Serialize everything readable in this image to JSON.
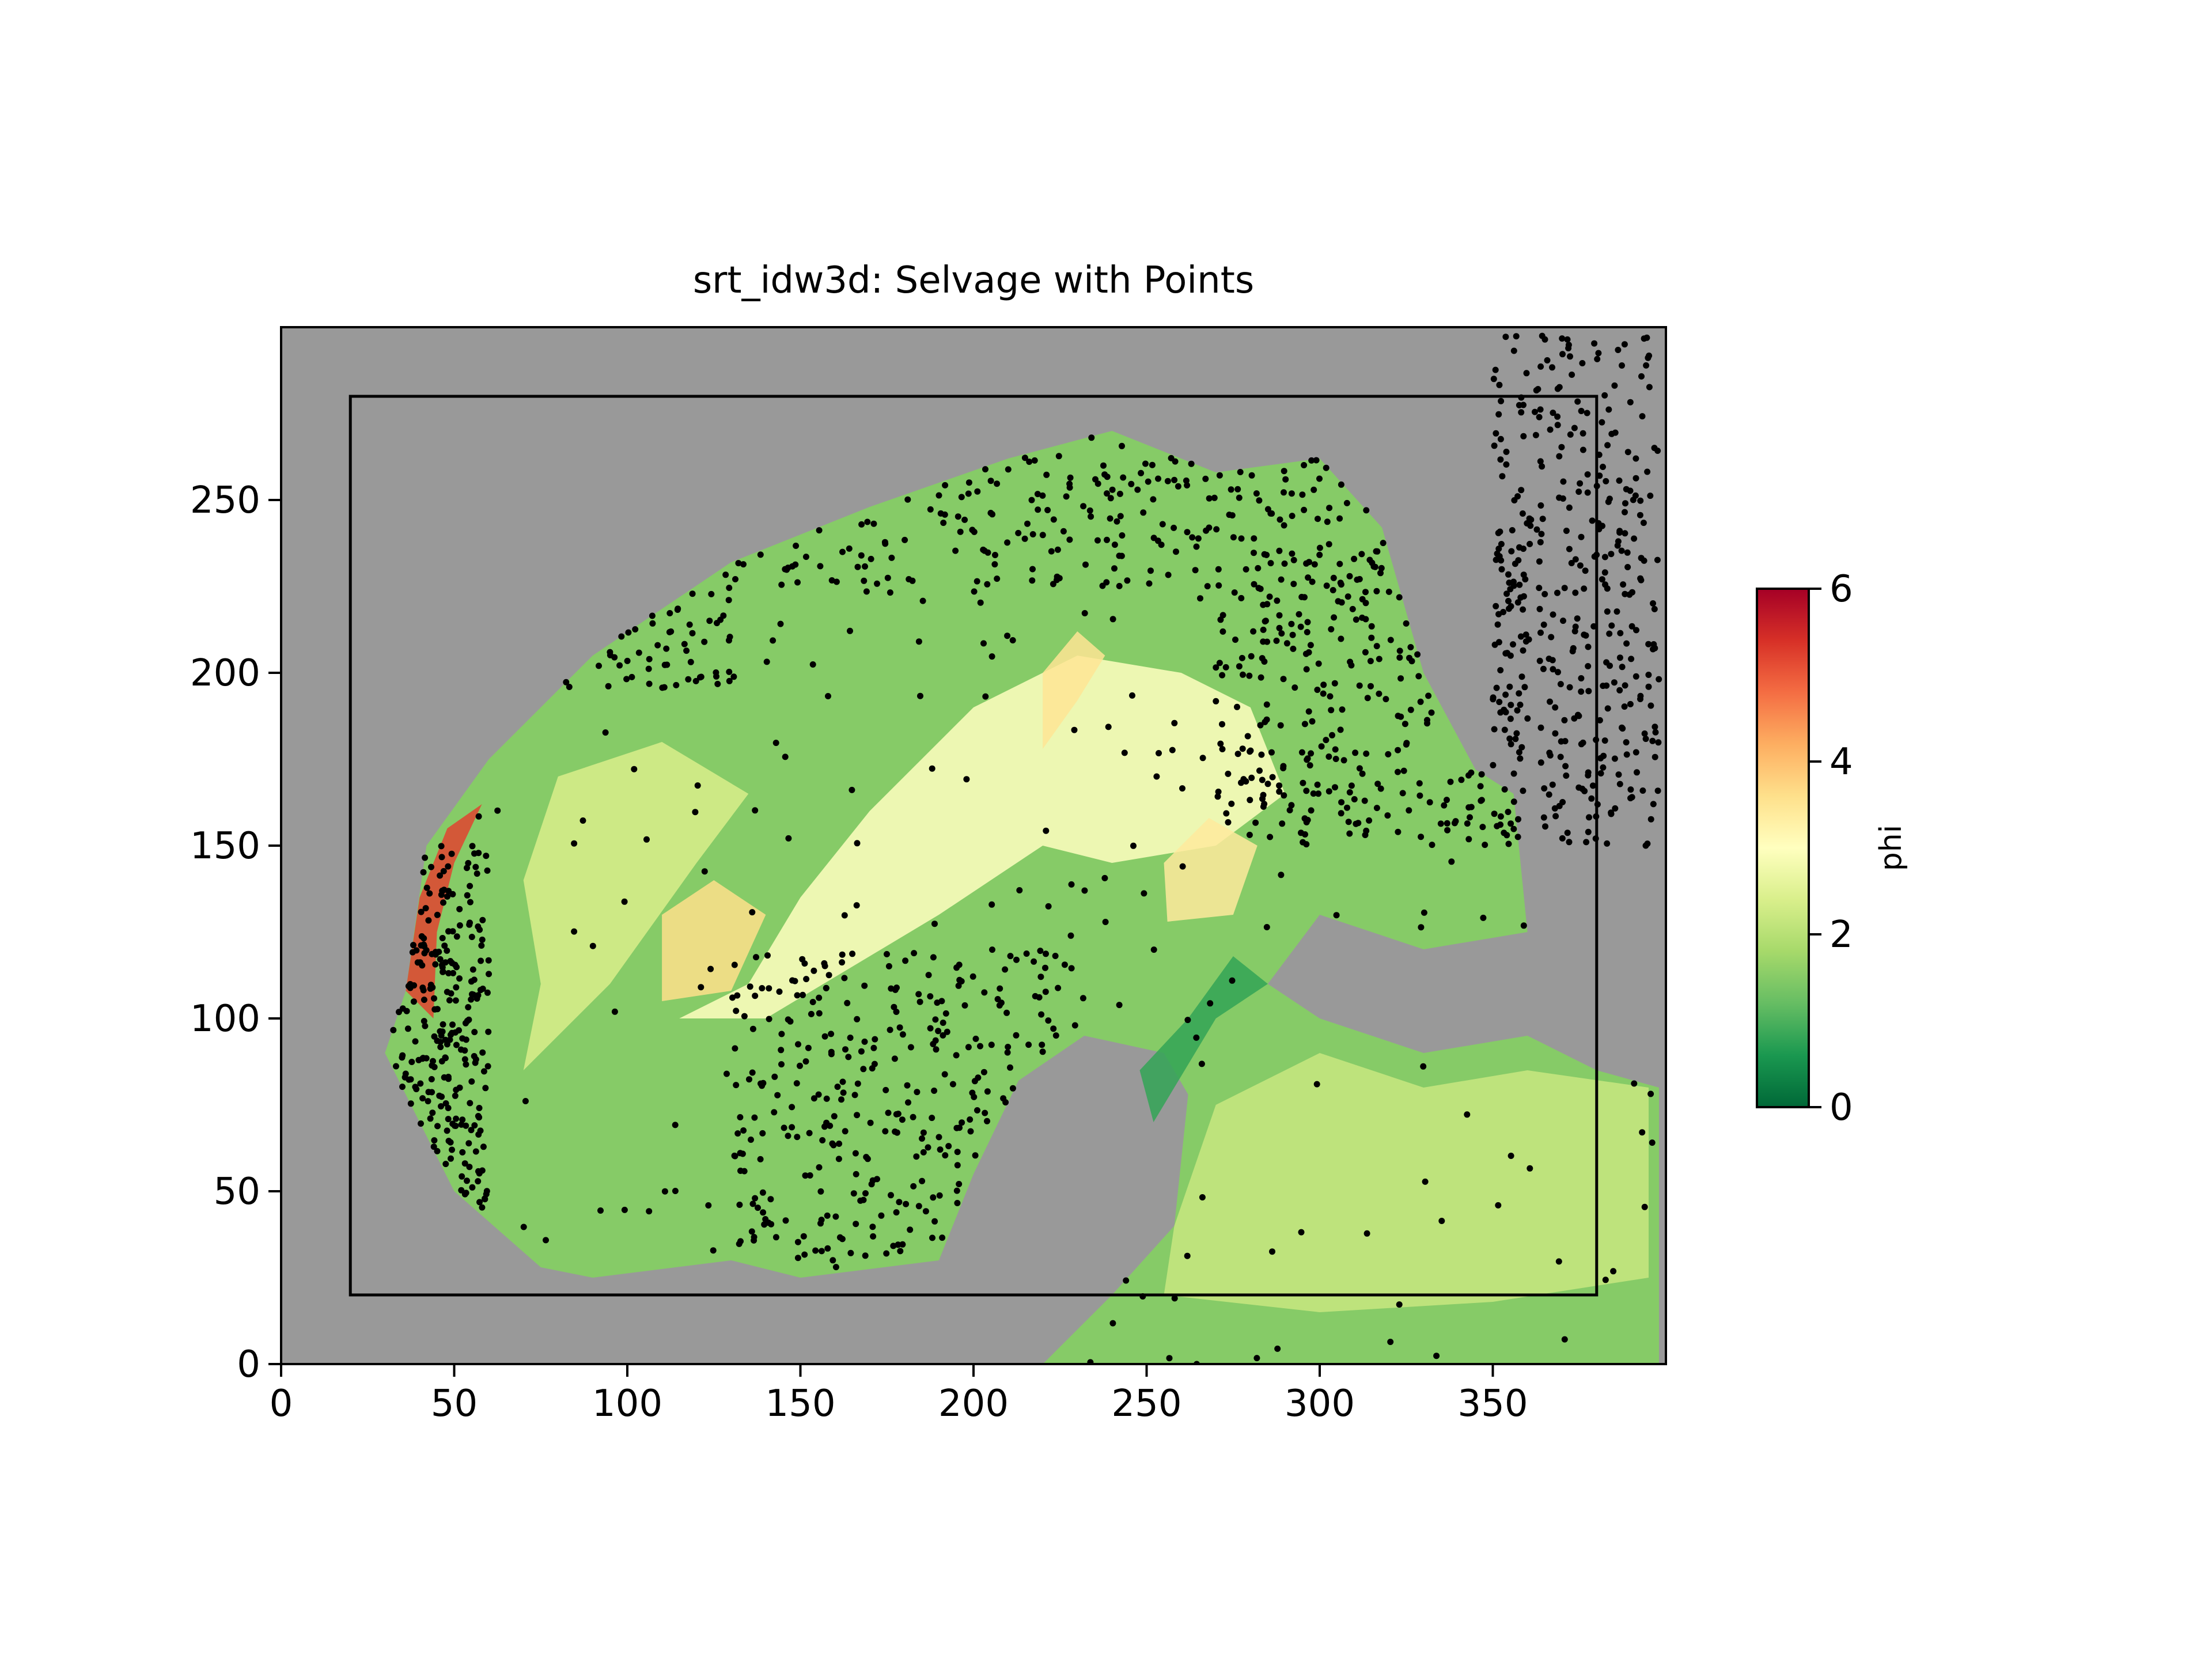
{
  "chart_data": {
    "type": "heatmap",
    "title": "srt_idw3d: Selvage with Points",
    "xlim": [
      0,
      400
    ],
    "ylim": [
      0,
      300
    ],
    "x_ticks": [
      0,
      50,
      100,
      150,
      200,
      250,
      300,
      350
    ],
    "y_ticks": [
      0,
      50,
      100,
      150,
      200,
      250
    ],
    "grid": false,
    "background_color": "#999999",
    "selvage_box": {
      "x0": 20,
      "y0": 20,
      "x1": 380,
      "y1": 280
    },
    "colorbar": {
      "label": "phi",
      "min": 0,
      "max": 6,
      "ticks": [
        0,
        2,
        4,
        6
      ],
      "colormap": "RdYlGn_r",
      "placement": "right"
    },
    "field_zones": [
      {
        "value": 1.5,
        "polygon": [
          [
            36,
            108
          ],
          [
            42,
            150
          ],
          [
            60,
            175
          ],
          [
            90,
            205
          ],
          [
            130,
            232
          ],
          [
            170,
            248
          ],
          [
            210,
            262
          ],
          [
            240,
            270
          ],
          [
            270,
            258
          ],
          [
            300,
            262
          ],
          [
            318,
            242
          ],
          [
            330,
            200
          ],
          [
            345,
            172
          ],
          [
            356,
            165
          ],
          [
            360,
            125
          ],
          [
            330,
            120
          ],
          [
            300,
            130
          ],
          [
            285,
            110
          ],
          [
            300,
            100
          ],
          [
            330,
            90
          ],
          [
            360,
            95
          ],
          [
            380,
            85
          ],
          [
            398,
            80
          ],
          [
            398,
            0
          ],
          [
            220,
            0
          ],
          [
            240,
            20
          ],
          [
            258,
            40
          ],
          [
            262,
            78
          ],
          [
            255,
            90
          ],
          [
            232,
            95
          ],
          [
            213,
            82
          ],
          [
            200,
            55
          ],
          [
            190,
            30
          ],
          [
            150,
            25
          ],
          [
            130,
            30
          ],
          [
            90,
            25
          ],
          [
            75,
            28
          ],
          [
            50,
            50
          ],
          [
            40,
            70
          ],
          [
            30,
            90
          ]
        ]
      },
      {
        "value": 3.0,
        "polygon": [
          [
            115,
            100
          ],
          [
            135,
            110
          ],
          [
            150,
            135
          ],
          [
            170,
            160
          ],
          [
            200,
            190
          ],
          [
            230,
            205
          ],
          [
            260,
            200
          ],
          [
            280,
            190
          ],
          [
            290,
            165
          ],
          [
            270,
            150
          ],
          [
            240,
            145
          ],
          [
            220,
            150
          ],
          [
            190,
            130
          ],
          [
            165,
            115
          ],
          [
            140,
            100
          ]
        ]
      },
      {
        "value": 2.4,
        "polygon": [
          [
            70,
            85
          ],
          [
            95,
            110
          ],
          [
            120,
            145
          ],
          [
            135,
            165
          ],
          [
            110,
            180
          ],
          [
            80,
            170
          ],
          [
            70,
            140
          ],
          [
            75,
            110
          ]
        ]
      },
      {
        "value": 3.6,
        "polygon": [
          [
            110,
            105
          ],
          [
            130,
            108
          ],
          [
            140,
            130
          ],
          [
            125,
            140
          ],
          [
            110,
            130
          ]
        ]
      },
      {
        "value": 3.5,
        "polygon": [
          [
            220,
            178
          ],
          [
            230,
            192
          ],
          [
            238,
            205
          ],
          [
            230,
            212
          ],
          [
            220,
            200
          ]
        ]
      },
      {
        "value": 3.4,
        "polygon": [
          [
            256,
            128
          ],
          [
            275,
            130
          ],
          [
            282,
            150
          ],
          [
            268,
            158
          ],
          [
            255,
            145
          ]
        ]
      },
      {
        "value": 5.2,
        "polygon": [
          [
            36,
            108
          ],
          [
            40,
            135
          ],
          [
            48,
            155
          ],
          [
            58,
            162
          ],
          [
            50,
            145
          ],
          [
            45,
            125
          ],
          [
            44,
            100
          ]
        ]
      },
      {
        "value": 2.2,
        "polygon": [
          [
            255,
            20
          ],
          [
            300,
            15
          ],
          [
            350,
            18
          ],
          [
            395,
            25
          ],
          [
            395,
            80
          ],
          [
            360,
            85
          ],
          [
            330,
            80
          ],
          [
            300,
            90
          ],
          [
            270,
            75
          ],
          [
            258,
            40
          ]
        ]
      },
      {
        "value": 0.8,
        "polygon": [
          [
            252,
            70
          ],
          [
            270,
            100
          ],
          [
            285,
            110
          ],
          [
            275,
            118
          ],
          [
            262,
            100
          ],
          [
            248,
            85
          ]
        ]
      }
    ],
    "dense_point_regions": [
      {
        "x": [
          35,
          130
        ],
        "y": [
          195,
          265
        ]
      },
      {
        "x": [
          130,
          320
        ],
        "y": [
          225,
          275
        ]
      },
      {
        "x": [
          270,
          360
        ],
        "y": [
          150,
          235
        ]
      },
      {
        "x": [
          350,
          398
        ],
        "y": [
          150,
          298
        ]
      },
      {
        "x": [
          130,
          230
        ],
        "y": [
          30,
          120
        ]
      },
      {
        "x": [
          30,
          60
        ],
        "y": [
          45,
          150
        ]
      }
    ],
    "sparse_point_region": {
      "x": [
        35,
        398
      ],
      "y": [
        0,
        300
      ]
    }
  }
}
